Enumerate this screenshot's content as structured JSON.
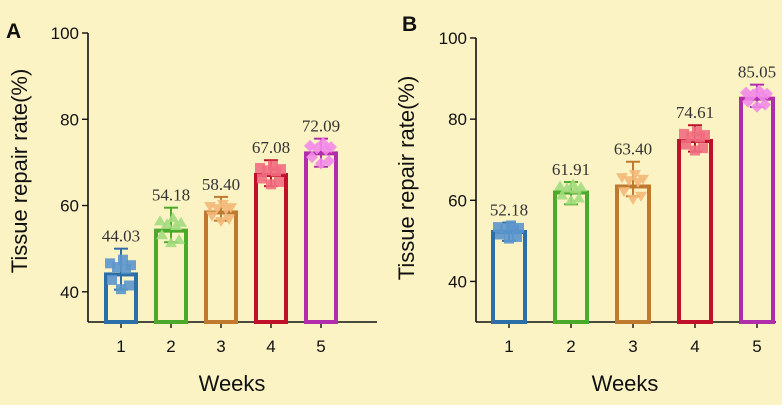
{
  "chart_data": [
    {
      "panel": "A",
      "type": "bar",
      "categories": [
        "1",
        "2",
        "3",
        "4",
        "5"
      ],
      "values": [
        44.03,
        54.18,
        58.4,
        67.08,
        72.09
      ],
      "value_labels": [
        "44.03",
        "54.18",
        "58.40",
        "67.08",
        "72.09"
      ],
      "ylabel": "Tissue repair rate(%)",
      "xlabel": "Weeks",
      "ylim": [
        33,
        100
      ],
      "yticks": [
        "40",
        "60",
        "80",
        "100"
      ],
      "ytick_values": [
        40,
        60,
        80,
        100
      ],
      "colors": [
        "#2b6ea8",
        "#4caa2a",
        "#c07a30",
        "#c0102a",
        "#b02dab"
      ],
      "point_colors": [
        "#5b95cc",
        "#a3dc7e",
        "#f2b878",
        "#ef6d80",
        "#f28ae8"
      ],
      "error_bars": [
        {
          "min": 40.5,
          "max": 50.0
        },
        {
          "min": 51.5,
          "max": 59.5
        },
        {
          "min": 56.5,
          "max": 62.0
        },
        {
          "min": 64.5,
          "max": 70.5
        },
        {
          "min": 69.0,
          "max": 75.5
        }
      ]
    },
    {
      "panel": "B",
      "type": "bar",
      "categories": [
        "1",
        "2",
        "3",
        "4",
        "5"
      ],
      "values": [
        52.18,
        61.91,
        63.4,
        74.61,
        85.05
      ],
      "value_labels": [
        "52.18",
        "61.91",
        "63.40",
        "74.61",
        "85.05"
      ],
      "ylabel": "Tissue repair rate(%)",
      "xlabel": "Weeks",
      "ylim": [
        30,
        100
      ],
      "yticks": [
        "40",
        "60",
        "80",
        "100"
      ],
      "ytick_values": [
        40,
        60,
        80,
        100
      ],
      "colors": [
        "#2b6ea8",
        "#4caa2a",
        "#c07a30",
        "#c0102a",
        "#b02dab"
      ],
      "point_colors": [
        "#5b95cc",
        "#a3dc7e",
        "#f2b878",
        "#ef6d80",
        "#f28ae8"
      ],
      "error_bars": [
        {
          "min": 50.0,
          "max": 54.5
        },
        {
          "min": 59.0,
          "max": 64.5
        },
        {
          "min": 61.0,
          "max": 69.5
        },
        {
          "min": 72.0,
          "max": 78.5
        },
        {
          "min": 83.0,
          "max": 88.5
        }
      ]
    }
  ]
}
